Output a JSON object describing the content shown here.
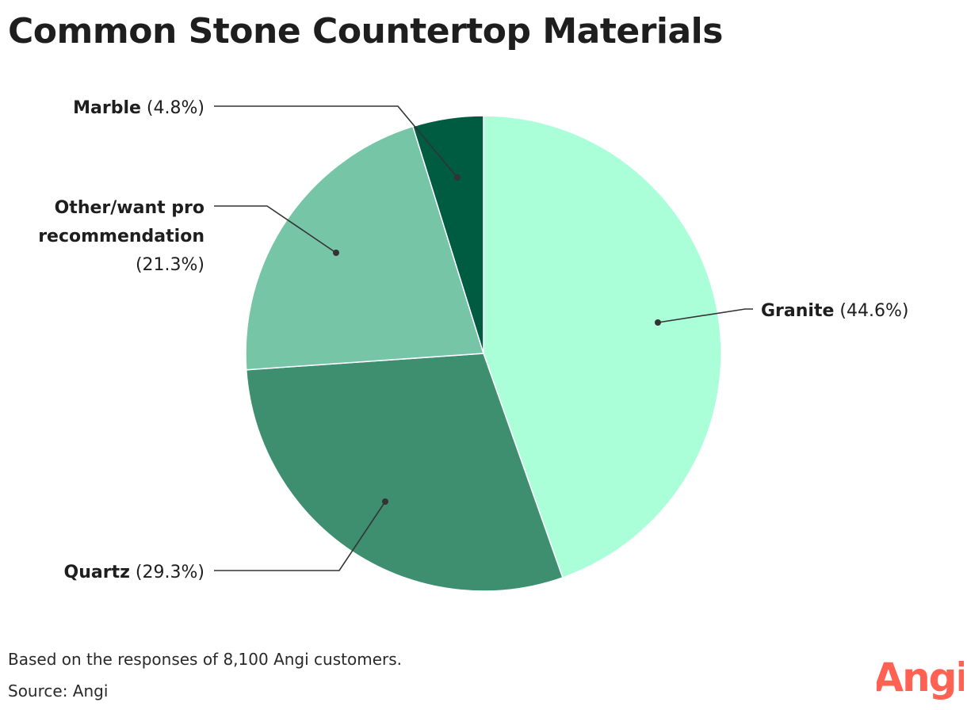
{
  "title": "Common Stone Countertop Materials",
  "footnote": "Based on the responses of 8,100 Angi customers.",
  "source": "Source: Angi",
  "logo_text": "Angi",
  "colors": {
    "logo": "#ff6153",
    "leader": "#333333",
    "text": "#1e1e1e"
  },
  "chart_data": {
    "type": "pie",
    "title": "Common Stone Countertop Materials",
    "start": "12 o'clock",
    "direction": "clockwise",
    "slices": [
      {
        "name": "Granite",
        "value": 44.6,
        "label": "(44.6%)",
        "color": "#aaffd9"
      },
      {
        "name": "Quartz",
        "value": 29.3,
        "label": "(29.3%)",
        "color": "#3d8f6f"
      },
      {
        "name": "Other/want pro recommendation",
        "name_lines": [
          "Other/want pro",
          "recommendation"
        ],
        "value": 21.3,
        "label": "(21.3%)",
        "color": "#76c5a6"
      },
      {
        "name": "Marble",
        "value": 4.8,
        "label": "(4.8%)",
        "color": "#005c40"
      }
    ]
  }
}
